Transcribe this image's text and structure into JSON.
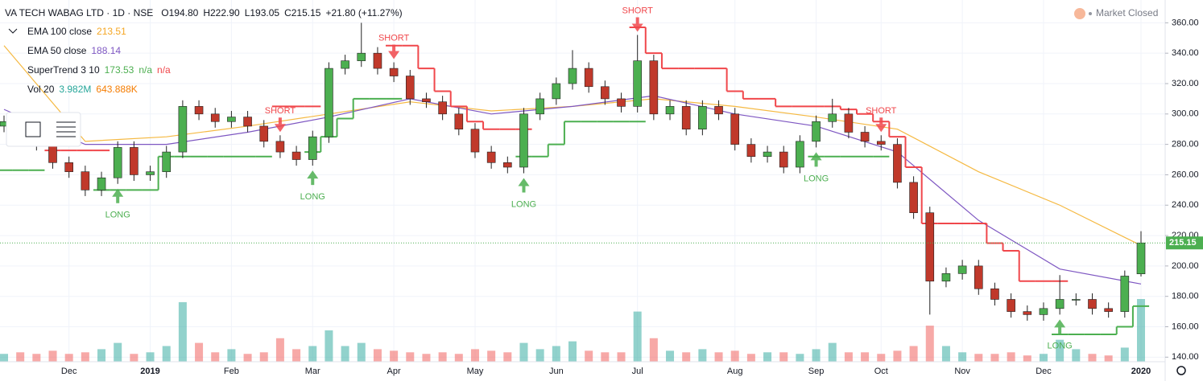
{
  "header": {
    "symbol": "VA TECH WABAG LTD · 1D · NSE",
    "ohlc": [
      [
        "O",
        "194.80"
      ],
      [
        "H",
        "222.90"
      ],
      [
        "L",
        "193.05"
      ],
      [
        "C",
        "215.15"
      ]
    ],
    "change": "+21.80 (+11.27%)",
    "status": "Market Closed"
  },
  "indicators": {
    "ema100": "EMA 100 close",
    "ema50": "EMA 50 close",
    "supertrend": "SuperTrend 3 10",
    "supertrend_extra": [
      "n/a",
      "n/a"
    ],
    "vol": "Vol 20",
    "vol_values": [
      "3.982M",
      "643.888K"
    ]
  },
  "chart_data": {
    "type": "candlestick",
    "categories": [
      null,
      null,
      null,
      null,
      "Dec",
      null,
      null,
      null,
      null,
      "2019",
      null,
      null,
      null,
      null,
      "Feb",
      null,
      null,
      null,
      null,
      "Mar",
      null,
      null,
      null,
      null,
      "Apr",
      null,
      null,
      null,
      null,
      "May",
      null,
      null,
      null,
      null,
      "Jun",
      null,
      null,
      null,
      null,
      "Jul",
      null,
      null,
      null,
      null,
      null,
      "Aug",
      null,
      null,
      null,
      null,
      "Sep",
      null,
      null,
      null,
      "Oct",
      null,
      null,
      null,
      null,
      "Nov",
      null,
      null,
      null,
      null,
      "Dec",
      null,
      null,
      null,
      null,
      null,
      "2020"
    ],
    "open": [
      292,
      295,
      290,
      280,
      268,
      262,
      250,
      258,
      278,
      260,
      262,
      275,
      305,
      300,
      295,
      298,
      292,
      282,
      275,
      270,
      285,
      330,
      335,
      340,
      330,
      325,
      310,
      308,
      300,
      290,
      275,
      268,
      265,
      300,
      310,
      320,
      330,
      318,
      310,
      305,
      335,
      300,
      305,
      290,
      305,
      300,
      280,
      272,
      275,
      265,
      282,
      295,
      300,
      288,
      282,
      280,
      255,
      235,
      190,
      195,
      200,
      185,
      178,
      170,
      168,
      172,
      178,
      178,
      172,
      170,
      194.8
    ],
    "high": [
      299,
      299,
      294,
      284,
      272,
      266,
      262,
      282,
      282,
      266,
      279,
      309,
      309,
      304,
      302,
      302,
      296,
      286,
      279,
      289,
      334,
      339,
      360,
      344,
      334,
      329,
      314,
      312,
      304,
      294,
      279,
      272,
      304,
      314,
      324,
      342,
      334,
      322,
      314,
      352,
      339,
      309,
      309,
      309,
      309,
      304,
      284,
      279,
      279,
      286,
      299,
      310,
      304,
      292,
      286,
      284,
      259,
      239,
      199,
      204,
      204,
      189,
      182,
      174,
      176,
      194,
      182,
      182,
      176,
      197,
      222.9
    ],
    "low": [
      288,
      286,
      276,
      264,
      258,
      246,
      246,
      254,
      256,
      256,
      258,
      271,
      296,
      291,
      291,
      288,
      278,
      271,
      266,
      266,
      281,
      326,
      331,
      326,
      321,
      306,
      304,
      296,
      286,
      271,
      264,
      261,
      261,
      296,
      306,
      316,
      314,
      306,
      301,
      301,
      296,
      296,
      286,
      286,
      296,
      276,
      268,
      268,
      261,
      261,
      278,
      291,
      284,
      278,
      276,
      251,
      231,
      168,
      186,
      191,
      181,
      174,
      166,
      164,
      164,
      168,
      174,
      168,
      166,
      166,
      193.05
    ],
    "close": [
      295,
      290,
      280,
      268,
      262,
      250,
      258,
      278,
      260,
      262,
      275,
      305,
      300,
      295,
      298,
      292,
      282,
      275,
      270,
      285,
      330,
      335,
      340,
      330,
      325,
      310,
      308,
      300,
      290,
      275,
      268,
      265,
      300,
      310,
      320,
      330,
      318,
      310,
      305,
      335,
      300,
      305,
      290,
      305,
      300,
      280,
      272,
      275,
      265,
      282,
      295,
      300,
      288,
      282,
      280,
      255,
      235,
      190,
      195,
      200,
      185,
      178,
      170,
      168,
      172,
      178,
      178,
      172,
      170,
      193.35,
      215.15
    ],
    "volume": [
      0.5,
      0.6,
      0.5,
      0.7,
      0.5,
      0.6,
      0.8,
      1.2,
      0.5,
      0.6,
      1.0,
      3.8,
      1.2,
      0.6,
      0.8,
      0.5,
      0.6,
      1.5,
      0.8,
      1.0,
      2.0,
      1.0,
      1.2,
      0.8,
      0.7,
      0.6,
      0.5,
      0.6,
      0.5,
      0.8,
      0.7,
      0.6,
      1.2,
      0.8,
      1.0,
      1.3,
      0.7,
      0.6,
      0.6,
      3.2,
      1.5,
      0.7,
      0.6,
      0.8,
      0.6,
      0.7,
      0.5,
      0.6,
      0.6,
      0.5,
      0.8,
      1.2,
      0.6,
      0.6,
      0.5,
      0.7,
      1.0,
      2.3,
      1.0,
      0.6,
      0.5,
      0.5,
      0.6,
      0.4,
      0.5,
      1.4,
      0.8,
      0.5,
      0.4,
      0.9,
      4.0
    ],
    "ema": [
      {
        "name": "EMA 100",
        "color": "#f5b942",
        "x": [
          0,
          5,
          10,
          15,
          20,
          25,
          30,
          35,
          40,
          45,
          50,
          55,
          60,
          65,
          70
        ],
        "values": [
          345,
          282,
          285,
          292,
          300,
          308,
          302,
          305,
          310,
          305,
          298,
          290,
          262,
          240,
          213.51
        ]
      },
      {
        "name": "EMA 50",
        "color": "#7e57c2",
        "x": [
          0,
          5,
          10,
          15,
          20,
          25,
          30,
          35,
          40,
          45,
          50,
          55,
          60,
          65,
          70
        ],
        "values": [
          303,
          280,
          280,
          288,
          298,
          310,
          300,
          305,
          312,
          300,
          292,
          275,
          230,
          198,
          188.14
        ]
      }
    ],
    "supertrend_up": {
      "color": "#4caf50",
      "values": [
        263,
        263,
        263,
        null,
        null,
        null,
        250,
        250,
        250,
        250,
        272,
        272,
        272,
        272,
        272,
        272,
        272,
        null,
        null,
        275,
        285,
        297,
        310,
        310,
        310,
        null,
        null,
        null,
        null,
        null,
        null,
        null,
        272,
        272,
        280,
        295,
        295,
        295,
        295,
        295,
        null,
        null,
        null,
        null,
        null,
        null,
        null,
        null,
        null,
        null,
        272,
        272,
        272,
        272,
        272,
        null,
        null,
        null,
        null,
        null,
        null,
        null,
        null,
        null,
        null,
        155,
        155,
        155,
        155,
        160,
        173.53
      ]
    },
    "supertrend_down": {
      "color": "#f0474b",
      "values": [
        null,
        null,
        null,
        276,
        276,
        276,
        276,
        null,
        null,
        null,
        null,
        null,
        null,
        null,
        null,
        null,
        null,
        305,
        305,
        305,
        null,
        null,
        null,
        null,
        345,
        345,
        330,
        315,
        305,
        295,
        290,
        290,
        290,
        null,
        null,
        null,
        null,
        null,
        null,
        357,
        340,
        330,
        330,
        330,
        330,
        315,
        310,
        310,
        305,
        305,
        305,
        305,
        303,
        300,
        295,
        285,
        265,
        228,
        228,
        228,
        228,
        215,
        210,
        190,
        190,
        190,
        null,
        null,
        null,
        null,
        null
      ]
    },
    "signals": [
      {
        "text": "SHORT",
        "x": 17
      },
      {
        "text": "SHORT",
        "x": 24
      },
      {
        "text": "SHORT",
        "x": 39
      },
      {
        "text": "SHORT",
        "x": 54
      },
      {
        "text": "LONG",
        "x": 7
      },
      {
        "text": "LONG",
        "x": 19
      },
      {
        "text": "LONG",
        "x": 32
      },
      {
        "text": "LONG",
        "x": 50
      },
      {
        "text": "LONG",
        "x": 65
      }
    ],
    "ylim": [
      137,
      375
    ],
    "yticks": [
      {
        "value": 140,
        "label": "140.00"
      },
      {
        "value": 160,
        "label": "160.00"
      },
      {
        "value": 180,
        "label": "180.00"
      },
      {
        "value": 200,
        "label": "200.00"
      },
      {
        "value": 220,
        "label": "220.00"
      },
      {
        "value": 240,
        "label": "240.00"
      },
      {
        "value": 260,
        "label": "260.00"
      },
      {
        "value": 280,
        "label": "280.00"
      },
      {
        "value": 300,
        "label": "300.00"
      },
      {
        "value": 320,
        "label": "320.00"
      },
      {
        "value": 340,
        "label": "340.00"
      },
      {
        "value": 360,
        "label": "360.00"
      }
    ],
    "grid": true
  }
}
